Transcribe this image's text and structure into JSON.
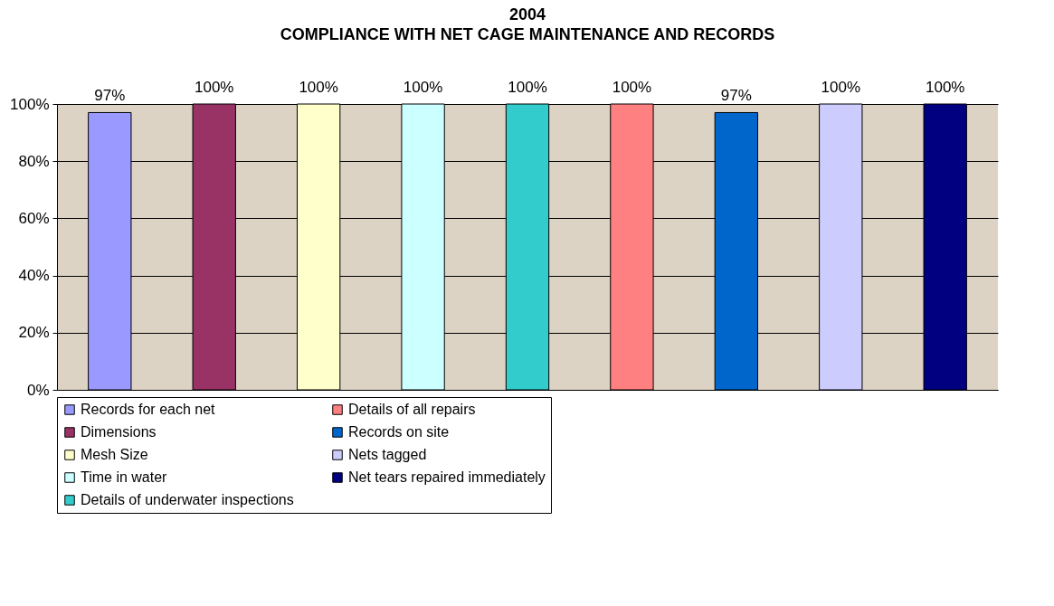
{
  "chart_data": {
    "type": "bar",
    "title": "2004",
    "subtitle": "COMPLIANCE WITH NET CAGE MAINTENANCE AND RECORDS",
    "categories": [
      null,
      null,
      null,
      null,
      null,
      null,
      null,
      null,
      null
    ],
    "series": [
      {
        "name": "Records for each net",
        "color": "#9999ff",
        "values": [
          97,
          null,
          null,
          null,
          null,
          null,
          null,
          null,
          null
        ],
        "value_labels": [
          "97%",
          null,
          null,
          null,
          null,
          null,
          null,
          null,
          null
        ]
      },
      {
        "name": "Dimensions",
        "color": "#993366",
        "values": [
          null,
          100,
          null,
          null,
          null,
          null,
          null,
          null,
          null
        ],
        "value_labels": [
          null,
          "100%",
          null,
          null,
          null,
          null,
          null,
          null,
          null
        ]
      },
      {
        "name": "Mesh Size",
        "color": "#ffffcc",
        "values": [
          null,
          null,
          100,
          null,
          null,
          null,
          null,
          null,
          null
        ],
        "value_labels": [
          null,
          null,
          "100%",
          null,
          null,
          null,
          null,
          null,
          null
        ]
      },
      {
        "name": "Time in water",
        "color": "#ccffff",
        "values": [
          null,
          null,
          null,
          100,
          null,
          null,
          null,
          null,
          null
        ],
        "value_labels": [
          null,
          null,
          null,
          "100%",
          null,
          null,
          null,
          null,
          null
        ]
      },
      {
        "name": "Details of underwater inspections",
        "color": "#33cccc",
        "values": [
          null,
          null,
          null,
          null,
          100,
          null,
          null,
          null,
          null
        ],
        "value_labels": [
          null,
          null,
          null,
          null,
          "100%",
          null,
          null,
          null,
          null
        ]
      },
      {
        "name": "Details of all repairs",
        "color": "#ff8080",
        "values": [
          null,
          null,
          null,
          null,
          null,
          100,
          null,
          null,
          null
        ],
        "value_labels": [
          null,
          null,
          null,
          null,
          null,
          "100%",
          null,
          null,
          null
        ]
      },
      {
        "name": "Records on site",
        "color": "#0066cc",
        "values": [
          null,
          null,
          null,
          null,
          null,
          null,
          97,
          null,
          null
        ],
        "value_labels": [
          null,
          null,
          null,
          null,
          null,
          null,
          "97%",
          null,
          null
        ]
      },
      {
        "name": "Nets tagged",
        "color": "#ccccff",
        "values": [
          null,
          null,
          null,
          null,
          null,
          null,
          null,
          100,
          null
        ],
        "value_labels": [
          null,
          null,
          null,
          null,
          null,
          null,
          null,
          "100%",
          null
        ]
      },
      {
        "name": "Net tears repaired immediately",
        "color": "#000080",
        "values": [
          null,
          null,
          null,
          null,
          null,
          null,
          null,
          null,
          100
        ],
        "value_labels": [
          null,
          null,
          null,
          null,
          null,
          null,
          null,
          null,
          "100%"
        ]
      }
    ],
    "ylim": [
      0,
      100
    ],
    "yticks": [
      {
        "value": 0,
        "label": "0%"
      },
      {
        "value": 20,
        "label": "20%"
      },
      {
        "value": 40,
        "label": "40%"
      },
      {
        "value": 60,
        "label": "60%"
      },
      {
        "value": 80,
        "label": "80%"
      },
      {
        "value": 100,
        "label": "100%"
      }
    ],
    "grid": "y",
    "legend": "bottom"
  }
}
